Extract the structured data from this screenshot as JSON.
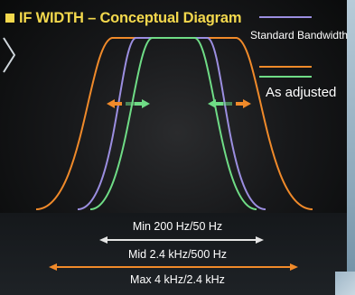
{
  "title": "IF WIDTH – Conceptual Diagram",
  "legend": {
    "standard_label": "Standard Bandwidth",
    "adjusted_label": "As adjusted",
    "standard_color": "#9b8ee0",
    "adjusted_orange": "#f08a2a",
    "adjusted_green": "#6fdc86"
  },
  "ranges": {
    "min": "Min 200 Hz/50 Hz",
    "mid": "Mid 2.4 kHz/500 Hz",
    "max": "Max 4 kHz/2.4 kHz"
  },
  "bar_colors": {
    "min": "#e4e4e4",
    "mid": "#f08a2a",
    "max": "#f08a2a"
  },
  "icons": {
    "nav": "chevron-right-icon",
    "arrows": [
      "double-arrow-left-icon",
      "double-arrow-right-icon"
    ]
  }
}
